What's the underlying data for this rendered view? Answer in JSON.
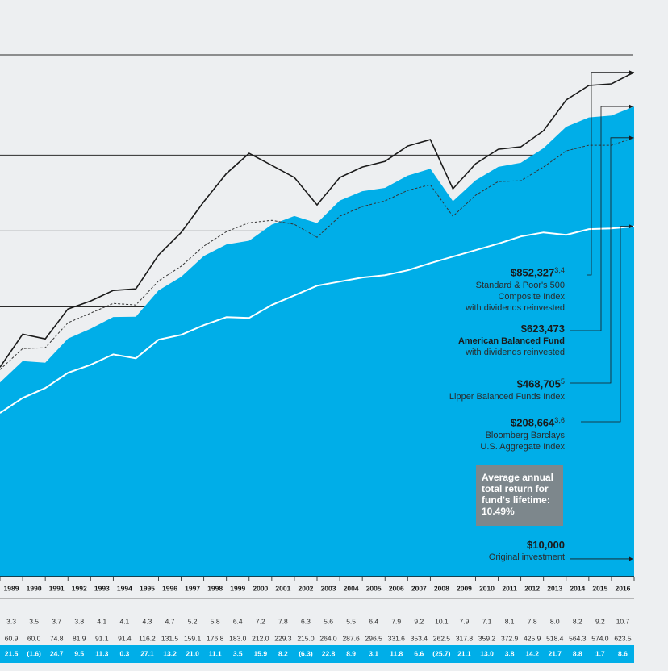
{
  "chart_data": {
    "type": "area",
    "log": true,
    "grid": true,
    "ylim": [
      8500,
      1000000
    ],
    "yticks": [
      100000,
      200000,
      400000,
      1000000
    ],
    "categories": [
      null,
      1989,
      1990,
      1991,
      1992,
      1993,
      1994,
      1995,
      1996,
      1997,
      1998,
      1999,
      2000,
      2001,
      2002,
      2003,
      2004,
      2005,
      2006,
      2007,
      2008,
      2009,
      2010,
      2011,
      2012,
      2013,
      2014,
      2015,
      2016
    ],
    "series": [
      {
        "name": "Standard & Poor's 500\nComposite Index",
        "note": "with dividends reinvested",
        "color": "#1a1a1a",
        "kind": "line",
        "end_label": "$852,327",
        "end_sup": "3,4",
        "values": [
          57600,
          77900,
          74600,
          98000,
          105500,
          116100,
          117800,
          160600,
          197400,
          261300,
          338200,
          406700,
          364200,
          326000,
          253700,
          326000,
          358800,
          377800,
          434700,
          461100,
          294000,
          369400,
          422000,
          431400,
          500000,
          661700,
          755700,
          766800,
          852327
        ]
      },
      {
        "name": "American Balanced Fund",
        "note": "with dividends reinvested",
        "color": "#00aee8",
        "kind": "area",
        "end_label": "$623,473",
        "end_sup": null,
        "values": [
          50100,
          60900,
          60000,
          74800,
          81900,
          91100,
          91400,
          116200,
          131500,
          159100,
          176800,
          183000,
          212000,
          229300,
          215000,
          264000,
          287600,
          296500,
          331600,
          353400,
          262500,
          317800,
          359200,
          372900,
          425900,
          518400,
          564300,
          574000,
          623473
        ]
      },
      {
        "name": "Lipper Balanced Funds Index",
        "note": null,
        "color": "#333333",
        "kind": "dashed",
        "end_label": "$468,705",
        "end_sup": "5",
        "values": [
          56400,
          68300,
          68800,
          86500,
          94400,
          103200,
          101700,
          126800,
          144900,
          174100,
          198900,
          215700,
          220500,
          212500,
          188900,
          228800,
          250000,
          263200,
          289700,
          305100,
          228800,
          277200,
          314200,
          316600,
          358800,
          415800,
          437800,
          437800,
          468705
        ]
      },
      {
        "name": "Bloomberg Barclays\nU.S. Aggregate Index",
        "note": null,
        "color": "#ffffff",
        "kind": "line",
        "end_label": "$208,664",
        "end_sup": "3,6",
        "values": [
          37900,
          43500,
          47600,
          54700,
          58900,
          64800,
          62500,
          74100,
          77400,
          84600,
          91000,
          90300,
          101700,
          111000,
          121300,
          125900,
          130700,
          133600,
          139600,
          149100,
          158200,
          167800,
          178000,
          190300,
          197400,
          193100,
          203400,
          204800,
          208664
        ]
      }
    ],
    "original_investment": {
      "value": 10000,
      "label": "$10,000",
      "text": "Original investment"
    },
    "lifetime_return": {
      "text": "Average annual\ntotal return for\nfund's lifetime:",
      "value": "10.49%"
    }
  },
  "table": {
    "rows": [
      [
        "3.3",
        "3.5",
        "3.7",
        "3.8",
        "4.1",
        "4.1",
        "4.3",
        "4.7",
        "5.2",
        "5.8",
        "6.4",
        "7.2",
        "7.8",
        "6.3",
        "5.6",
        "5.5",
        "6.4",
        "7.9",
        "9.2",
        "10.1",
        "7.9",
        "7.1",
        "8.1",
        "7.8",
        "8.0",
        "8.2",
        "9.2",
        "10.7"
      ],
      [
        "60.9",
        "60.0",
        "74.8",
        "81.9",
        "91.1",
        "91.4",
        "116.2",
        "131.5",
        "159.1",
        "176.8",
        "183.0",
        "212.0",
        "229.3",
        "215.0",
        "264.0",
        "287.6",
        "296.5",
        "331.6",
        "353.4",
        "262.5",
        "317.8",
        "359.2",
        "372.9",
        "425.9",
        "518.4",
        "564.3",
        "574.0",
        "623.5"
      ],
      [
        "21.5",
        "(1.6)",
        "24.7",
        "9.5",
        "11.3",
        "0.3",
        "27.1",
        "13.2",
        "21.0",
        "11.1",
        "3.5",
        "15.9",
        "8.2",
        "(6.3)",
        "22.8",
        "8.9",
        "3.1",
        "11.8",
        "6.6",
        "(25.7)",
        "21.1",
        "13.0",
        "3.8",
        "14.2",
        "21.7",
        "8.8",
        "1.7",
        "8.6"
      ]
    ]
  }
}
